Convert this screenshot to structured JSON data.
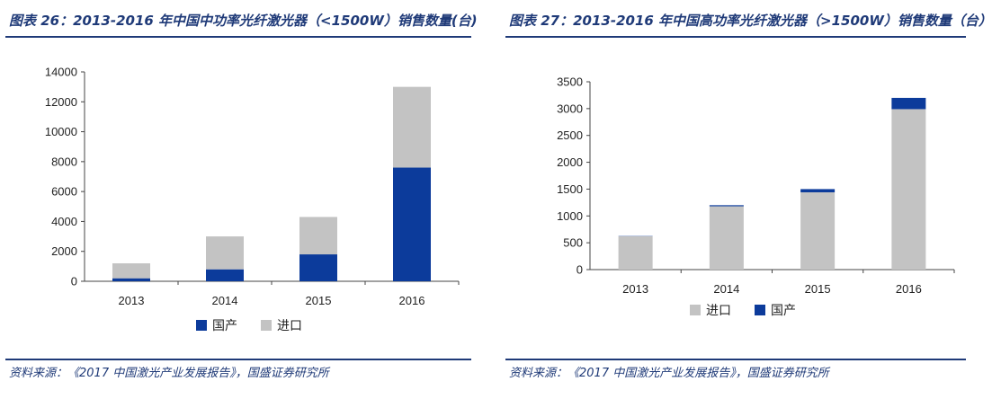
{
  "colors": {
    "domestic": "#0c3b9b",
    "import": "#c3c3c3",
    "accent": "#1f3a78"
  },
  "left": {
    "title": "图表 26：2013-2016 年中国中功率光纤激光器（<1500W）销售数量(台)",
    "source": "资料来源：《2017 中国激光产业发展报告》，国盛证券研究所",
    "chart_data": {
      "type": "bar",
      "stacked": true,
      "categories": [
        "2013",
        "2014",
        "2015",
        "2016"
      ],
      "series": [
        {
          "name": "国产",
          "values": [
            200,
            800,
            1800,
            7600
          ]
        },
        {
          "name": "进口",
          "values": [
            1000,
            2200,
            2500,
            5400
          ]
        }
      ],
      "ylim": [
        0,
        14000
      ],
      "yticks": [
        0,
        2000,
        4000,
        6000,
        8000,
        10000,
        12000,
        14000
      ],
      "legend": "bottom",
      "grid": false
    }
  },
  "right": {
    "title": "图表 27：2013-2016 年中国高功率光纤激光器（>1500W）销售数量（台）",
    "source": "资料来源：《2017 中国激光产业发展报告》，国盛证券研究所",
    "chart_data": {
      "type": "bar",
      "stacked": true,
      "categories": [
        "2013",
        "2014",
        "2015",
        "2016"
      ],
      "series": [
        {
          "name": "进口",
          "values": [
            620,
            1180,
            1440,
            2990
          ]
        },
        {
          "name": "国产",
          "values": [
            5,
            20,
            60,
            210
          ]
        }
      ],
      "ylim": [
        0,
        3500
      ],
      "yticks": [
        0,
        500,
        1000,
        1500,
        2000,
        2500,
        3000,
        3500
      ],
      "legend": "bottom",
      "grid": false
    }
  }
}
